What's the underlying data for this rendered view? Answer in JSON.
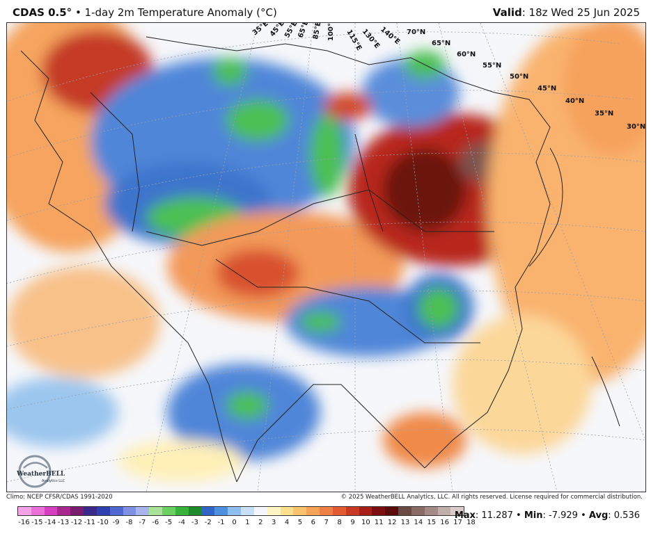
{
  "header": {
    "model": "CDAS 0.5°",
    "subtitle": " • 1-day 2m Temperature Anomaly (°C)",
    "valid_label": "Valid",
    "valid_value": ": 18z Wed 25 Jun 2025"
  },
  "map": {
    "lat_labels": [
      "70°N",
      "65°N",
      "60°N",
      "55°N",
      "50°N",
      "45°N",
      "40°N",
      "35°N",
      "30°N"
    ],
    "lon_labels": [
      "35°E",
      "45°E",
      "55°E",
      "65°E",
      "85°E",
      "100°E",
      "115°E",
      "130°E",
      "140°E"
    ],
    "logo_text": "WeatherBELL",
    "logo_sub": "Analytics LLC"
  },
  "credits": {
    "climo": "Climo: NCEP CFSR/CDAS 1991-2020",
    "copyright": "© 2025 WeatherBELL Analytics, LLC. All rights reserved. License required for commercial distribution."
  },
  "colorbar": {
    "labels": [
      "-16",
      "-15",
      "-14",
      "-13",
      "-12",
      "-11",
      "-10",
      "-9",
      "-8",
      "-7",
      "-6",
      "-5",
      "-4",
      "-3",
      "-2",
      "-1",
      "0",
      "1",
      "2",
      "3",
      "4",
      "5",
      "6",
      "7",
      "8",
      "9",
      "10",
      "11",
      "12",
      "13",
      "14",
      "15",
      "16",
      "17",
      "18"
    ],
    "colors": [
      "#f4a4e6",
      "#ea6fd8",
      "#d53fc0",
      "#a8288f",
      "#7a1d6e",
      "#3b2a8c",
      "#3040b0",
      "#4f67d0",
      "#7f8fe2",
      "#a8b4ee",
      "#a9e39a",
      "#6ccf63",
      "#39b23c",
      "#1f8a2a",
      "#2f66c8",
      "#4f8fe0",
      "#8fbff0",
      "#c7e0f6",
      "#f3f6fa",
      "#fff5c4",
      "#fde08e",
      "#fcc26e",
      "#f7a257",
      "#f07f45",
      "#e25b33",
      "#c93a24",
      "#a81f18",
      "#7c1010",
      "#5a0b0b",
      "#6b4a44",
      "#8a6a64",
      "#a48b87",
      "#c0aeaa",
      "#d9ccc9"
    ],
    "stats_max_label": "Max",
    "stats_max": ": 11.287 • ",
    "stats_min_label": "Min",
    "stats_min": ": -7.929 • ",
    "stats_avg_label": "Avg",
    "stats_avg": ": 0.536"
  }
}
